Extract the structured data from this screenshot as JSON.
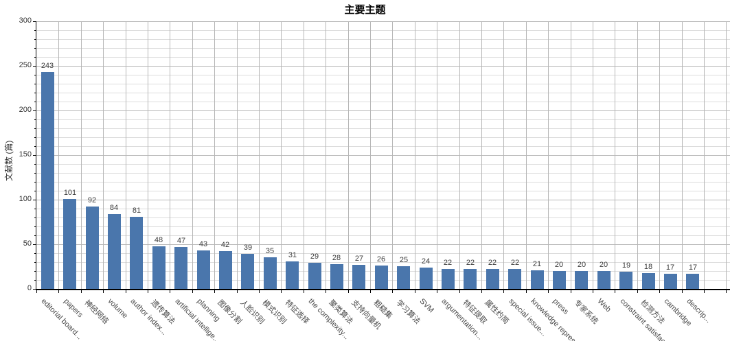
{
  "chart_data": {
    "type": "bar",
    "title": "主要主题",
    "ylabel": "文献数 (篇)",
    "xlabel": "",
    "ylim": [
      0,
      300
    ],
    "y_major_step": 50,
    "y_minor_step": 10,
    "y_tick_labels": [
      "0",
      "50",
      "100",
      "150",
      "200",
      "250",
      "300"
    ],
    "grid": true,
    "legend_position": "none",
    "categories": [
      "editorial board...",
      "papers",
      "神经网络",
      "volume",
      "author index...",
      "遗传算法",
      "artificial intellige...",
      "planning",
      "图像分割",
      "人脸识别",
      "模式识别",
      "特征选择",
      "the complexity...",
      "聚类算法",
      "支持向量机",
      "粗糙集",
      "学习算法",
      "SVM",
      "argumentation...",
      "特征提取",
      "属性约简",
      "special issue...",
      "knowledge represe...",
      "press",
      "专家系统",
      "Web",
      "constraint satisfact...",
      "检测方法",
      "cambridge",
      "descrip..."
    ],
    "values": [
      243,
      101,
      92,
      84,
      81,
      48,
      47,
      43,
      42,
      39,
      35,
      31,
      29,
      28,
      27,
      26,
      25,
      24,
      22,
      22,
      22,
      22,
      21,
      20,
      20,
      20,
      19,
      18,
      17,
      17
    ],
    "colors": {
      "bar": "#4a76ac",
      "axis": "#000000",
      "grid_major": "#b6b6b6",
      "grid_minor": "#dcdcdc",
      "grid_vertical": "#b6b6b6",
      "value_label": "#3d3d3d",
      "tick_label": "#333333",
      "category_label": "#4a4a4a"
    }
  }
}
